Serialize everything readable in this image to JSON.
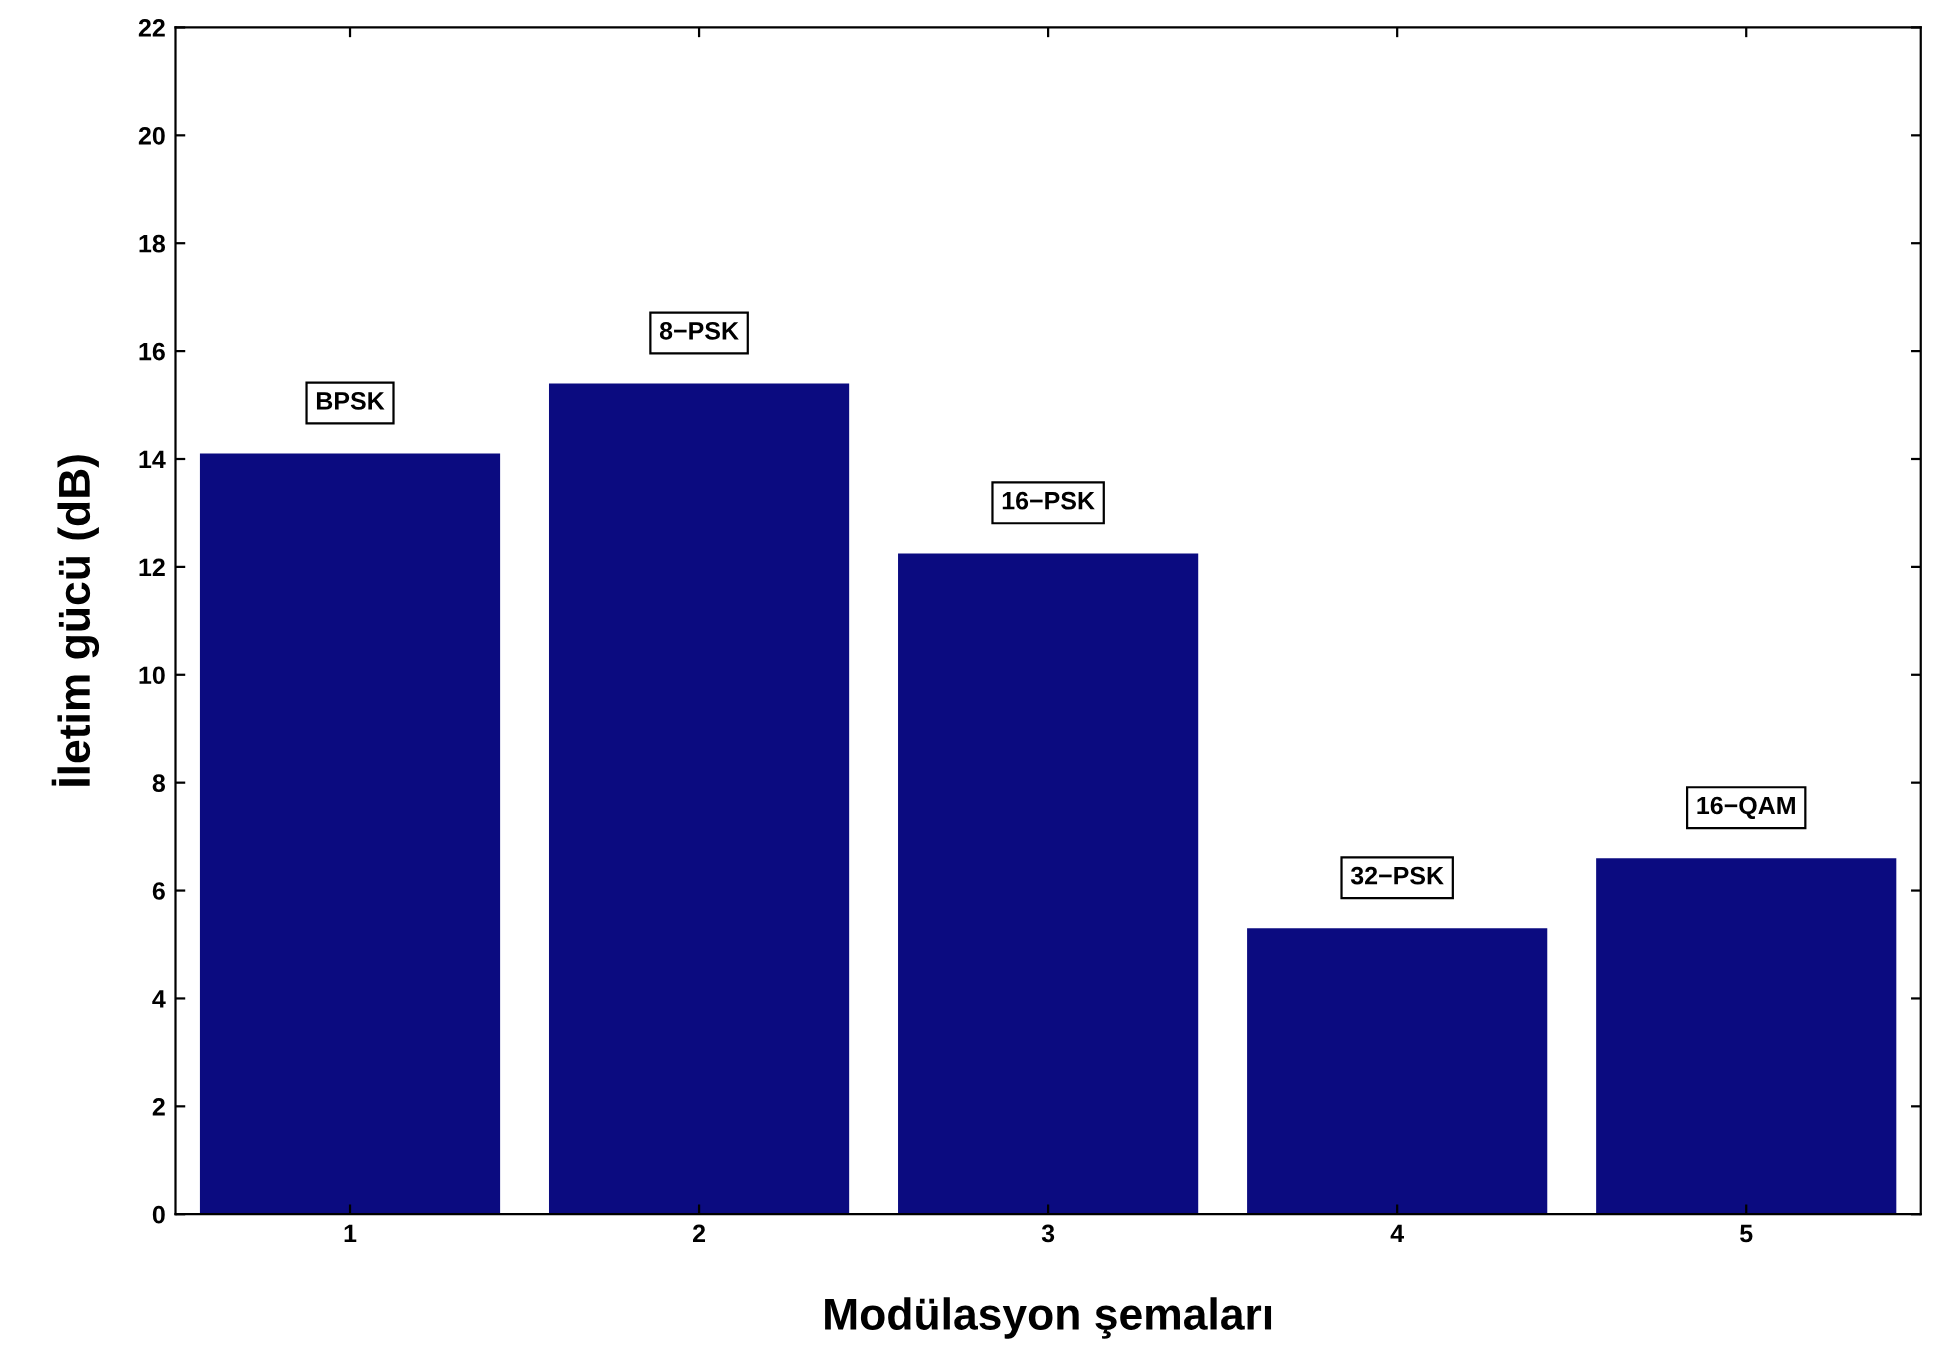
{
  "chart_data": {
    "type": "bar",
    "xlabel": "Modülasyon şemaları",
    "ylabel": "İletim gücü (dB)",
    "categories": [
      "1",
      "2",
      "3",
      "4",
      "5"
    ],
    "values": [
      14.1,
      15.4,
      12.25,
      5.3,
      6.6
    ],
    "color": "#0b0b80",
    "ylim": [
      0,
      22
    ],
    "yticks": [
      0,
      2,
      4,
      6,
      8,
      10,
      12,
      14,
      16,
      18,
      20,
      22
    ],
    "grid": false,
    "annotations": [
      {
        "text": "BPSK",
        "x": "1",
        "y": 14.1
      },
      {
        "text": "8−PSK",
        "x": "2",
        "y": 15.4
      },
      {
        "text": "16−PSK",
        "x": "3",
        "y": 12.25
      },
      {
        "text": "32−PSK",
        "x": "4",
        "y": 5.3
      },
      {
        "text": "16−QAM",
        "x": "5",
        "y": 6.6
      }
    ]
  }
}
